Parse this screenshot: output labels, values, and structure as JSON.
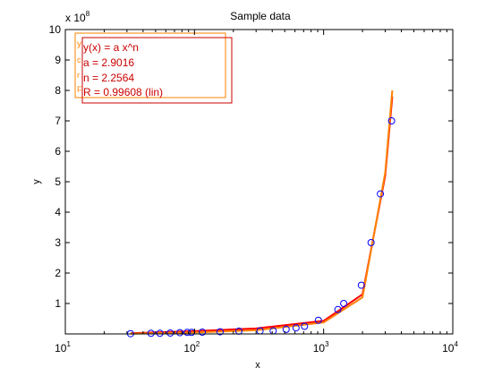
{
  "chart_data": {
    "type": "scatter",
    "title": "Sample data",
    "xlabel": "x",
    "ylabel": "y",
    "x_scale": "log",
    "xlim": [
      10,
      10000
    ],
    "ylim": [
      0,
      1000000000
    ],
    "y_multiplier_label": "x 10",
    "y_multiplier_exponent": "8",
    "x_ticks": [
      {
        "value": 10,
        "base": "10",
        "exp": "1"
      },
      {
        "value": 100,
        "base": "10",
        "exp": "2"
      },
      {
        "value": 1000,
        "base": "10",
        "exp": "3"
      },
      {
        "value": 10000,
        "base": "10",
        "exp": "4"
      }
    ],
    "y_ticks": [
      {
        "value": 100000000,
        "label": "1"
      },
      {
        "value": 200000000,
        "label": "2"
      },
      {
        "value": 300000000,
        "label": "3"
      },
      {
        "value": 400000000,
        "label": "4"
      },
      {
        "value": 500000000,
        "label": "5"
      },
      {
        "value": 600000000,
        "label": "6"
      },
      {
        "value": 700000000,
        "label": "7"
      },
      {
        "value": 800000000,
        "label": "8"
      },
      {
        "value": 900000000,
        "label": "9"
      },
      {
        "value": 1000000000,
        "label": "10"
      }
    ],
    "grid": false,
    "legend_placement": "top-left",
    "series": [
      {
        "kind": "markers",
        "color": "#0000ff",
        "marker": "circle-open",
        "x": [
          32,
          46,
          54,
          65,
          77,
          88,
          95,
          115,
          158,
          221,
          322,
          407,
          513,
          611,
          711,
          910,
          1290,
          1430,
          1960,
          2330,
          2750,
          3360
        ],
        "y": [
          1000000,
          2000000,
          2000000,
          3000000,
          4000000,
          5000000,
          5000000,
          6000000,
          7000000,
          9000000,
          10000000,
          10000000,
          15000000,
          20000000,
          25000000,
          45000000,
          80000000,
          100000000,
          160000000,
          300000000,
          460000000,
          700000000
        ]
      },
      {
        "kind": "fit-line",
        "color": "#ff0000",
        "x": [
          32,
          100,
          300,
          1000,
          2000,
          3000,
          3400
        ],
        "y": [
          2000000,
          9000000,
          18000000,
          43000000,
          130000000,
          520000000,
          780000000
        ]
      },
      {
        "kind": "fit-line",
        "color": "#ff8000",
        "x": [
          32,
          100,
          300,
          1000,
          2000,
          3000,
          3400
        ],
        "y": [
          1000000,
          5000000,
          12000000,
          38000000,
          120000000,
          530000000,
          800000000
        ]
      }
    ],
    "legend_boxes": [
      {
        "color": "#ff8000",
        "lines": [
          "y",
          "c",
          "r",
          "F"
        ]
      },
      {
        "color": "#cc0000",
        "lines": [
          "y(x) = a x^n",
          "a = 2.9016",
          "n = 2.2564",
          "R = 0.99608  (lin)"
        ]
      }
    ]
  }
}
